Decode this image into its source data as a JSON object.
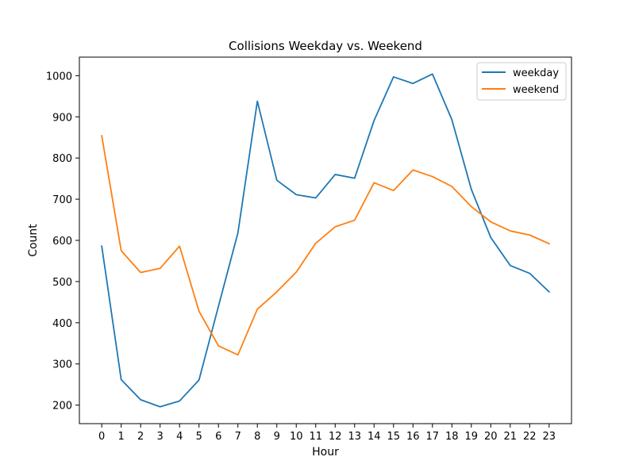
{
  "chart_data": {
    "type": "line",
    "title": "Collisions Weekday vs. Weekend",
    "xlabel": "Hour",
    "ylabel": "Count",
    "x": [
      0,
      1,
      2,
      3,
      4,
      5,
      6,
      7,
      8,
      9,
      10,
      11,
      12,
      13,
      14,
      15,
      16,
      17,
      18,
      19,
      20,
      21,
      22,
      23
    ],
    "xlim": [
      -1.15,
      24.15
    ],
    "ylim": [
      155,
      1045
    ],
    "yticks": [
      200,
      300,
      400,
      500,
      600,
      700,
      800,
      900,
      1000
    ],
    "grid": false,
    "legend": "top-right",
    "series": [
      {
        "name": "weekday",
        "color": "#1f77b4",
        "values": [
          586,
          262,
          213,
          196,
          210,
          261,
          440,
          618,
          938,
          746,
          711,
          703,
          760,
          751,
          891,
          997,
          981,
          1004,
          893,
          724,
          607,
          539,
          520,
          475
        ]
      },
      {
        "name": "weekend",
        "color": "#ff7f0e",
        "values": [
          854,
          575,
          522,
          532,
          586,
          428,
          344,
          322,
          433,
          475,
          523,
          593,
          633,
          649,
          740,
          721,
          771,
          755,
          731,
          682,
          645,
          623,
          613,
          592
        ]
      }
    ]
  }
}
